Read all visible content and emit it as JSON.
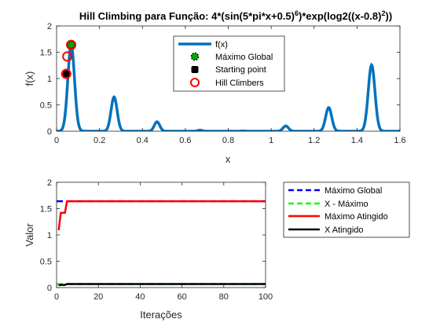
{
  "chart_data": [
    {
      "type": "line",
      "title_main": "Hill Climbing para Função:  4*(sin(5*pi*x+0.5)",
      "title_sup1": "6",
      "title_mid": ")*exp(log2((x-0.8)",
      "title_sup2": "2",
      "title_end": "))",
      "xlabel": "x",
      "ylabel": "f(x)",
      "xlim": [
        0,
        1.6
      ],
      "ylim": [
        0,
        2
      ],
      "xticks": [
        "0",
        "0.2",
        "0.4",
        "0.6",
        "0.8",
        "1",
        "1.2",
        "1.4",
        "1.6"
      ],
      "yticks": [
        "0",
        "0.5",
        "1",
        "1.5",
        "2"
      ],
      "grid": false,
      "legend_position": "top-center",
      "legend": [
        "f(x)",
        "Máximo Global",
        "Starting point",
        "Hill Climbers"
      ],
      "series": [
        {
          "name": "f(x)",
          "color": "#0072BD"
        }
      ],
      "points": {
        "maximo_global": {
          "x": 0.068,
          "y": 1.64,
          "color": "#00aa00"
        },
        "starting_point": {
          "x": 0.045,
          "y": 1.09,
          "color": "#000000"
        },
        "hill_climbers": {
          "x": [
            0.045,
            0.05,
            0.068
          ],
          "y": [
            1.09,
            1.42,
            1.64
          ],
          "color": "#ff0000"
        }
      }
    },
    {
      "type": "line",
      "xlabel": "Iterações",
      "ylabel": "Valor",
      "xlim": [
        0,
        100
      ],
      "ylim": [
        0,
        2
      ],
      "xticks": [
        "0",
        "20",
        "40",
        "60",
        "80",
        "100"
      ],
      "yticks": [
        "0",
        "0.5",
        "1",
        "1.5",
        "2"
      ],
      "grid": false,
      "legend_position": "outside-right",
      "legend": [
        "Máximo Global",
        "X - Máximo",
        "Máximo Atingido",
        "X Atingido"
      ],
      "series": [
        {
          "name": "Máximo Global",
          "style": "dashed",
          "color": "#0000ff",
          "x": [
            0,
            100
          ],
          "y": [
            1.64,
            1.64
          ]
        },
        {
          "name": "X - Máximo",
          "style": "dashed",
          "color": "#00ff00",
          "x": [
            0,
            100
          ],
          "y": [
            0.068,
            0.068
          ]
        },
        {
          "name": "Máximo Atingido",
          "style": "solid",
          "color": "#ff0000",
          "x": [
            1,
            2,
            3,
            4,
            5,
            100
          ],
          "y": [
            1.09,
            1.42,
            1.42,
            1.42,
            1.64,
            1.64
          ]
        },
        {
          "name": "X Atingido",
          "style": "solid",
          "color": "#000000",
          "x": [
            1,
            2,
            3,
            4,
            5,
            100
          ],
          "y": [
            0.045,
            0.05,
            0.05,
            0.05,
            0.068,
            0.068
          ]
        }
      ]
    }
  ]
}
